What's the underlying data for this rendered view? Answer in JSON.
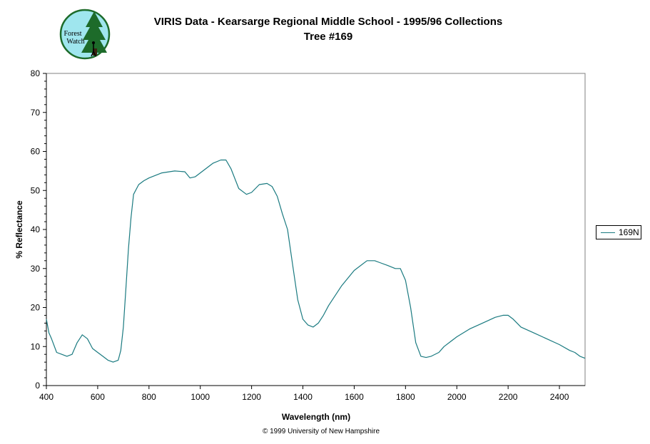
{
  "logo": {
    "text_line1": "Forest",
    "text_line2": "Watch"
  },
  "colors": {
    "series": "#1a7a80",
    "logo_bg": "#9fe6ee",
    "tree": "#1d6b2a"
  },
  "copyright": "© 1999 University of New Hampshire",
  "chart_data": {
    "type": "line",
    "title": "VIRIS Data - Kearsarge Regional Middle School - 1995/96 Collections",
    "subtitle": "Tree #169",
    "xlabel": "Wavelength (nm)",
    "ylabel": "% Reflectance",
    "xlim": [
      400,
      2500
    ],
    "ylim": [
      0,
      80
    ],
    "xticks": [
      400,
      600,
      800,
      1000,
      1200,
      1400,
      1600,
      1800,
      2000,
      2200,
      2400
    ],
    "yticks": [
      0,
      10,
      20,
      30,
      40,
      50,
      60,
      70,
      80
    ],
    "grid": false,
    "legend": "right",
    "series": [
      {
        "name": "169N",
        "x": [
          400,
          410,
          420,
          440,
          460,
          480,
          500,
          520,
          540,
          560,
          580,
          600,
          620,
          640,
          660,
          680,
          690,
          700,
          710,
          720,
          730,
          740,
          760,
          780,
          800,
          850,
          900,
          940,
          960,
          980,
          1000,
          1050,
          1080,
          1100,
          1120,
          1150,
          1180,
          1200,
          1230,
          1260,
          1280,
          1300,
          1320,
          1340,
          1360,
          1380,
          1400,
          1420,
          1440,
          1460,
          1480,
          1500,
          1550,
          1600,
          1650,
          1680,
          1700,
          1730,
          1760,
          1780,
          1800,
          1820,
          1840,
          1860,
          1880,
          1900,
          1930,
          1950,
          2000,
          2050,
          2100,
          2150,
          2180,
          2200,
          2220,
          2250,
          2300,
          2350,
          2400,
          2440,
          2460,
          2480,
          2500
        ],
        "y": [
          17,
          13.5,
          12,
          8.5,
          8,
          7.5,
          8,
          11,
          13,
          12,
          9.5,
          8.5,
          7.5,
          6.5,
          6,
          6.5,
          9,
          15,
          25,
          35,
          43,
          49,
          51.5,
          52.5,
          53.2,
          54.5,
          55,
          54.8,
          53.2,
          53.5,
          54.5,
          57,
          57.8,
          57.8,
          55.5,
          50.5,
          49,
          49.5,
          51.5,
          51.8,
          51,
          48.5,
          44,
          40,
          31,
          22,
          17,
          15.5,
          15,
          16,
          18,
          20.5,
          25.5,
          29.5,
          32,
          32,
          31.5,
          30.8,
          30,
          30,
          27,
          20,
          11,
          7.5,
          7.2,
          7.5,
          8.5,
          10,
          12.5,
          14.5,
          16,
          17.5,
          18,
          18,
          17,
          15,
          13.5,
          12,
          10.5,
          9,
          8.5,
          7.5,
          7
        ]
      }
    ]
  }
}
